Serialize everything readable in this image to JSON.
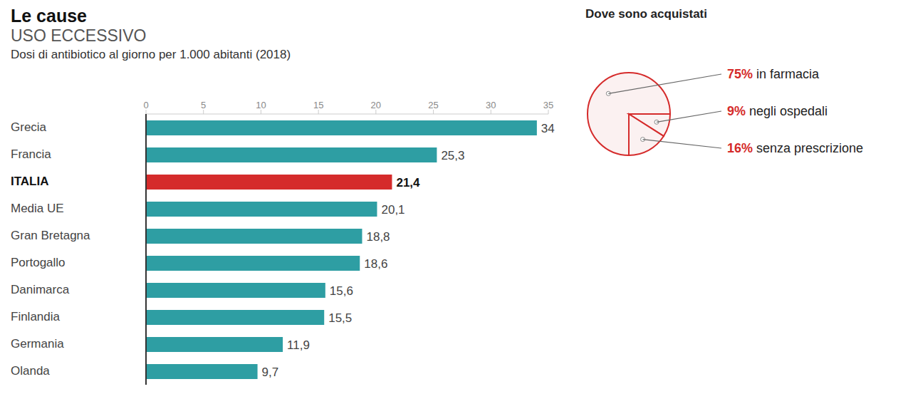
{
  "chart_data": [
    {
      "type": "bar",
      "orientation": "horizontal",
      "title": "Le cause",
      "subtitle": "USO ECCESSIVO",
      "xlabel": "Dosi di antibiotico al giorno per 1.000 abitanti (2018)",
      "categories": [
        "Grecia",
        "Francia",
        "ITALIA",
        "Media UE",
        "Gran Bretagna",
        "Portogallo",
        "Danimarca",
        "Finlandia",
        "Germania",
        "Olanda"
      ],
      "values": [
        34,
        25.3,
        21.4,
        20.1,
        18.8,
        18.6,
        15.6,
        15.5,
        11.9,
        9.7
      ],
      "value_labels": [
        "34",
        "25,3",
        "21,4",
        "20,1",
        "18,8",
        "18,6",
        "15,6",
        "15,5",
        "11,9",
        "9,7"
      ],
      "colors": [
        "#2e9ea3",
        "#2e9ea3",
        "#d52b2b",
        "#2e9ea3",
        "#2e9ea3",
        "#2e9ea3",
        "#2e9ea3",
        "#2e9ea3",
        "#2e9ea3",
        "#2e9ea3"
      ],
      "xlim": [
        0,
        35
      ],
      "xticks": [
        0,
        5,
        10,
        15,
        20,
        25,
        30,
        35
      ],
      "grid": false,
      "data_labels": true
    },
    {
      "type": "pie",
      "title": "Dove sono acquistati",
      "categories": [
        "in farmacia",
        "negli ospedali",
        "senza prescrizione"
      ],
      "values": [
        75,
        9,
        16
      ],
      "value_labels": [
        "75%",
        "9%",
        "16%"
      ],
      "colors": [
        "#fbf1f1",
        "#fbf1f1",
        "#fbf1f1"
      ],
      "data_labels": true
    }
  ]
}
